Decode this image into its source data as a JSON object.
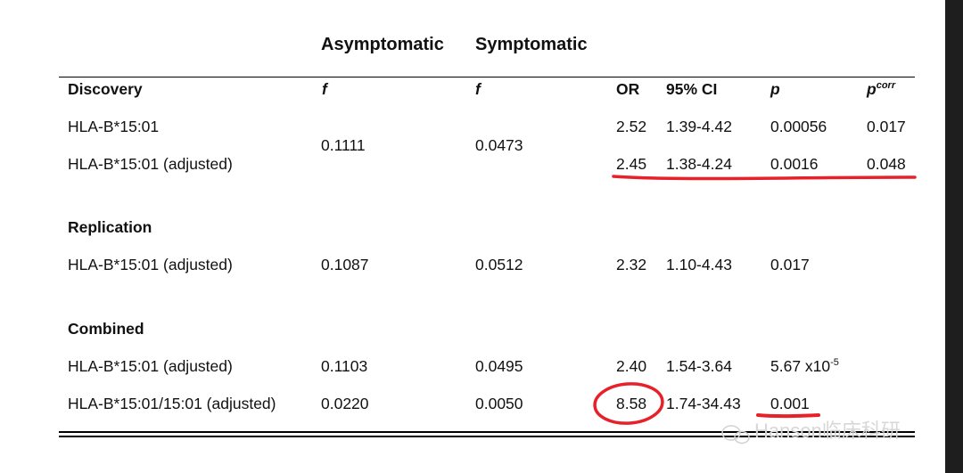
{
  "column_groups": {
    "asymptomatic": "Asymptomatic",
    "symptomatic": "Symptomatic"
  },
  "columns": {
    "or": "OR",
    "ci": "95% CI",
    "p": "p",
    "pcorr_base": "p",
    "pcorr_sup": "corr",
    "f1": "f",
    "f2": "f"
  },
  "sections": [
    {
      "title": "Discovery",
      "freq_asym": "0.1111",
      "freq_sym": "0.0473",
      "rows": [
        {
          "label": "HLA-B*15:01",
          "or": "2.52",
          "ci": "1.39-4.42",
          "p": "0.00056",
          "pcorr": "0.017"
        },
        {
          "label": "HLA-B*15:01 (adjusted)",
          "or": "2.45",
          "ci": "1.38-4.24",
          "p": "0.0016",
          "pcorr": "0.048"
        }
      ]
    },
    {
      "title": "Replication",
      "rows": [
        {
          "label": "HLA-B*15:01 (adjusted)",
          "freq_asym": "0.1087",
          "freq_sym": "0.0512",
          "or": "2.32",
          "ci": "1.10-4.43",
          "p": "0.017"
        }
      ]
    },
    {
      "title": "Combined",
      "rows": [
        {
          "label": "HLA-B*15:01 (adjusted)",
          "freq_asym": "0.1103",
          "freq_sym": "0.0495",
          "or": "2.40",
          "ci": "1.54-3.64",
          "p_base": "5.67 x10",
          "p_exp": "-5"
        },
        {
          "label": "HLA-B*15:01/15:01 (adjusted)",
          "freq_asym": "0.0220",
          "freq_sym": "0.0050",
          "or": "8.58",
          "ci": "1.74-34.43",
          "p": "0.001"
        }
      ]
    }
  ],
  "watermark": "Hanson临床科研",
  "watermark_icon": "wechat-icon",
  "annotation_color": "#e8202a"
}
